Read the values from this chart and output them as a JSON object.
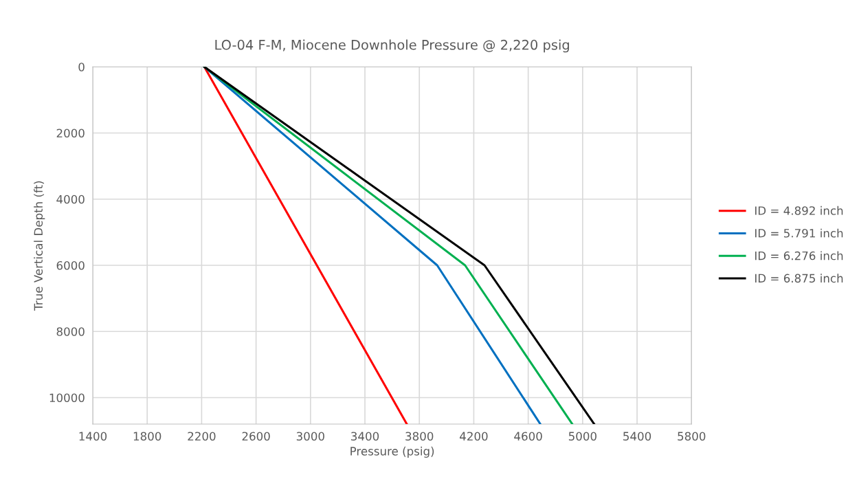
{
  "chart_data": {
    "type": "line",
    "title": "LO-04 F-M, Miocene Downhole Pressure @ 2,220 psig",
    "xlabel": "Pressure (psig)",
    "ylabel": "True Vertical Depth (ft)",
    "series": [
      {
        "name": "ID = 4.892 inch",
        "color": "#ff0000",
        "x": [
          2220,
          3708
        ],
        "values": [
          0,
          10800
        ]
      },
      {
        "name": "ID = 5.791 inch",
        "color": "#0070c0",
        "x": [
          2220,
          3931,
          4689
        ],
        "values": [
          0,
          6000,
          10800
        ]
      },
      {
        "name": "ID = 6.276 inch",
        "color": "#00b050",
        "x": [
          2220,
          4136,
          4924
        ],
        "values": [
          0,
          6000,
          10800
        ]
      },
      {
        "name": "ID = 6.875 inch",
        "color": "#000000",
        "x": [
          2220,
          4279,
          5085
        ],
        "values": [
          0,
          6000,
          10800
        ]
      }
    ],
    "xlim": [
      1400,
      5800
    ],
    "xticks": [
      1400,
      1800,
      2200,
      2600,
      3000,
      3400,
      3800,
      4200,
      4600,
      5000,
      5400,
      5800
    ],
    "ylim": [
      10800,
      0
    ],
    "yticks": [
      0,
      2000,
      4000,
      6000,
      8000,
      10000
    ],
    "grid": true,
    "legend": "right",
    "marker": "none",
    "line_style": "solid"
  }
}
